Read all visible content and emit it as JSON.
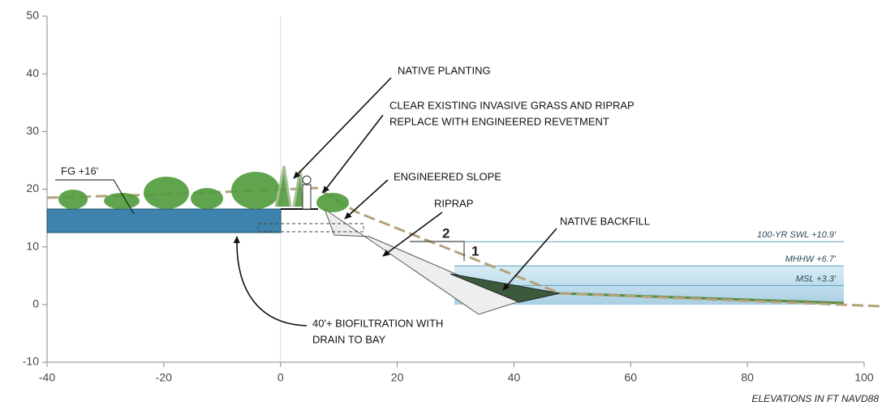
{
  "axes": {
    "xlim": [
      -40,
      100
    ],
    "ylim": [
      -10,
      50
    ],
    "xticks": [
      -40,
      -20,
      0,
      20,
      40,
      60,
      80,
      100
    ],
    "yticks": [
      -10,
      0,
      10,
      20,
      30,
      40,
      50
    ],
    "note": "ELEVATIONS IN FT NAVD88"
  },
  "annotations": {
    "native_planting": "NATIVE PLANTING",
    "clear_existing": [
      "CLEAR EXISTING INVASIVE GRASS AND RIPRAP",
      "REPLACE WITH ENGINEERED REVETMENT"
    ],
    "engineered_slope": "ENGINEERED SLOPE",
    "riprap": "RIPRAP",
    "native_backfill": "NATIVE BACKFILL",
    "biofiltration": [
      "40'+  BIOFILTRATION WITH",
      "DRAIN TO BAY"
    ]
  },
  "finished_grade": {
    "label": "FG +16'",
    "elevation": 16
  },
  "water_levels": [
    {
      "label": "100-YR SWL +10.9'",
      "elevation": 10.9
    },
    {
      "label": "MHHW +6.7'",
      "elevation": 6.7
    },
    {
      "label": "MSL +3.3'",
      "elevation": 3.3
    }
  ],
  "slope": {
    "run": 2,
    "rise": 1
  }
}
